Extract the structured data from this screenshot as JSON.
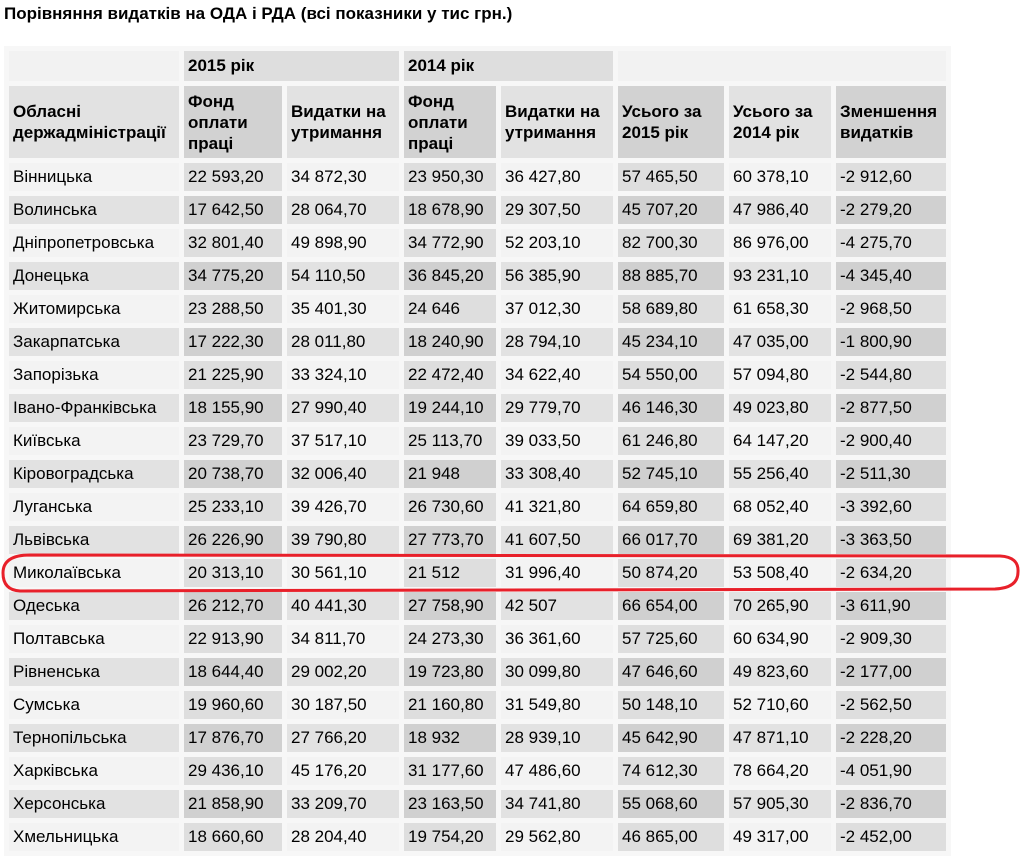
{
  "title": "Порівняння видатків на ОДА і РДА (всі показники у тис грн.)",
  "header_groups": [
    "",
    "2015 рік",
    "2014 рік",
    ""
  ],
  "columns": [
    "Обласні держадміністрації",
    "Фонд оплати праці",
    "Видатки на утримання",
    "Фонд оплати праці",
    "Видатки на утримання",
    "Усього за 2015 рік",
    "Усього за 2014 рік",
    "Зменшення видатків"
  ],
  "highlighted_row": "Миколаївська",
  "highlight_color": "#e8202a",
  "rows": [
    [
      "Вінницька",
      "22 593,20",
      "34 872,30",
      "23 950,30",
      "36 427,80",
      "57 465,50",
      "60 378,10",
      "-2 912,60"
    ],
    [
      "Волинська",
      "17 642,50",
      "28 064,70",
      "18 678,90",
      "29 307,50",
      "45 707,20",
      "47 986,40",
      "-2 279,20"
    ],
    [
      "Дніпропетровська",
      "32 801,40",
      "49 898,90",
      "34 772,90",
      "52 203,10",
      "82 700,30",
      "86 976,00",
      "-4 275,70"
    ],
    [
      "Донецька",
      "34 775,20",
      "54 110,50",
      "36 845,20",
      "56 385,90",
      "88 885,70",
      "93 231,10",
      "-4 345,40"
    ],
    [
      "Житомирська",
      "23 288,50",
      "35 401,30",
      "24 646",
      "37 012,30",
      "58 689,80",
      "61 658,30",
      "-2 968,50"
    ],
    [
      "Закарпатська",
      "17 222,30",
      "28 011,80",
      "18 240,90",
      "28 794,10",
      "45 234,10",
      "47 035,00",
      "-1 800,90"
    ],
    [
      "Запорізька",
      "21 225,90",
      "33 324,10",
      "22 472,40",
      "34 622,40",
      "54 550,00",
      "57 094,80",
      "-2 544,80"
    ],
    [
      "Івано-Франківська",
      "18 155,90",
      "27 990,40",
      "19 244,10",
      "29 779,70",
      "46 146,30",
      "49 023,80",
      "-2 877,50"
    ],
    [
      "Київська",
      "23 729,70",
      "37 517,10",
      "25 113,70",
      "39 033,50",
      "61 246,80",
      "64 147,20",
      "-2 900,40"
    ],
    [
      "Кіровоградська",
      "20 738,70",
      "32 006,40",
      "21 948",
      "33 308,40",
      "52 745,10",
      "55 256,40",
      "-2 511,30"
    ],
    [
      "Луганська",
      "25 233,10",
      "39 426,70",
      "26 730,60",
      "41 321,80",
      "64 659,80",
      "68 052,40",
      "-3 392,60"
    ],
    [
      "Львівська",
      "26 226,90",
      "39 790,80",
      "27 773,70",
      "41 607,50",
      "66 017,70",
      "69 381,20",
      "-3 363,50"
    ],
    [
      "Миколаївська",
      "20 313,10",
      "30 561,10",
      "21 512",
      "31 996,40",
      "50 874,20",
      "53 508,40",
      "-2 634,20"
    ],
    [
      "Одеська",
      "26 212,70",
      "40 441,30",
      "27 758,90",
      "42 507",
      "66 654,00",
      "70 265,90",
      "-3 611,90"
    ],
    [
      "Полтавська",
      "22 913,90",
      "34 811,70",
      "24 273,30",
      "36 361,60",
      "57 725,60",
      "60 634,90",
      "-2 909,30"
    ],
    [
      "Рівненська",
      "18 644,40",
      "29 002,20",
      "19 723,80",
      "30 099,80",
      "47 646,60",
      "49 823,60",
      "-2 177,00"
    ],
    [
      "Сумська",
      "19 960,60",
      "30 187,50",
      "21 160,80",
      "31 549,80",
      "50 148,10",
      "52 710,60",
      "-2 562,50"
    ],
    [
      "Тернопільська",
      "17 876,70",
      "27 766,20",
      "18 932",
      "28 939,10",
      "45 642,90",
      "47 871,10",
      "-2 228,20"
    ],
    [
      "Харківська",
      "29 436,10",
      "45 176,20",
      "31 177,60",
      "47 486,60",
      "74 612,30",
      "78 664,20",
      "-4 051,90"
    ],
    [
      "Херсонська",
      "21 858,90",
      "33 209,70",
      "23 163,50",
      "34 741,80",
      "55 068,60",
      "57 905,30",
      "-2 836,70"
    ],
    [
      "Хмельницька",
      "18 660,60",
      "28 204,40",
      "19 754,20",
      "29 562,80",
      "46 865,00",
      "49 317,00",
      "-2 452,00"
    ]
  ]
}
